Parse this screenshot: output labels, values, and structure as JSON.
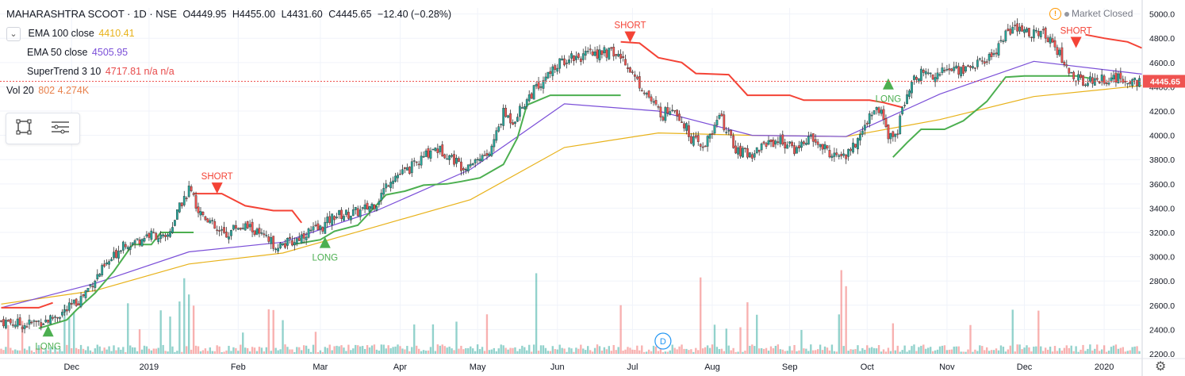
{
  "header": {
    "symbol": "MAHARASHTRA SCOOT · 1D · NSE",
    "open": "O4449.95",
    "high": "H4455.00",
    "low": "L4431.60",
    "close": "C4445.65",
    "change": "−12.40 (−0.28%)"
  },
  "indicators": [
    {
      "label": "EMA 100 close",
      "value": "4410.41",
      "color": "#e8b21a"
    },
    {
      "label": "EMA 50 close",
      "value": "4505.95",
      "color": "#7b4fd8"
    },
    {
      "label": "SuperTrend 3 10",
      "value": "4717.81 n/a n/a",
      "color": "#e84b4b"
    },
    {
      "label": "Vol 20",
      "value": "802 4.274K",
      "color": "#e8804b"
    }
  ],
  "market_status": "Market Closed",
  "chart_data": {
    "type": "candlestick",
    "y_axis_ticks": [
      2200,
      2400,
      2600,
      2800,
      3000,
      3200,
      3400,
      3600,
      3800,
      4000,
      4200,
      4400,
      4600,
      4800,
      5000
    ],
    "ylim": [
      2200,
      5050
    ],
    "x_axis_labels": [
      "Dec",
      "2019",
      "Feb",
      "Mar",
      "Apr",
      "May",
      "Jun",
      "Jul",
      "Aug",
      "Sep",
      "Oct",
      "Nov",
      "Dec",
      "2020"
    ],
    "last_price": "4445.65",
    "close_path": [
      [
        0,
        2470
      ],
      [
        10,
        2440
      ],
      [
        20,
        2480
      ],
      [
        28,
        2560
      ],
      [
        34,
        2660
      ],
      [
        40,
        2820
      ],
      [
        48,
        3000
      ],
      [
        52,
        3120
      ],
      [
        56,
        3110
      ],
      [
        62,
        3180
      ],
      [
        66,
        3180
      ],
      [
        70,
        3130
      ],
      [
        76,
        3400
      ],
      [
        80,
        3560
      ],
      [
        84,
        3380
      ],
      [
        88,
        3320
      ],
      [
        92,
        3200
      ],
      [
        96,
        3180
      ],
      [
        100,
        3250
      ],
      [
        106,
        3240
      ],
      [
        112,
        3150
      ],
      [
        118,
        3090
      ],
      [
        124,
        3120
      ],
      [
        130,
        3200
      ],
      [
        136,
        3230
      ],
      [
        142,
        3340
      ],
      [
        148,
        3350
      ],
      [
        154,
        3380
      ],
      [
        160,
        3450
      ],
      [
        166,
        3650
      ],
      [
        172,
        3700
      ],
      [
        178,
        3780
      ],
      [
        184,
        3900
      ],
      [
        190,
        3850
      ],
      [
        196,
        3750
      ],
      [
        202,
        3800
      ],
      [
        208,
        3850
      ],
      [
        214,
        4180
      ],
      [
        218,
        4120
      ],
      [
        224,
        4300
      ],
      [
        230,
        4440
      ],
      [
        236,
        4560
      ],
      [
        242,
        4650
      ],
      [
        248,
        4650
      ],
      [
        254,
        4680
      ],
      [
        260,
        4680
      ],
      [
        266,
        4620
      ],
      [
        270,
        4470
      ],
      [
        274,
        4380
      ],
      [
        278,
        4250
      ],
      [
        282,
        4170
      ],
      [
        286,
        4250
      ],
      [
        290,
        4130
      ],
      [
        294,
        3980
      ],
      [
        298,
        3900
      ],
      [
        302,
        3980
      ],
      [
        306,
        4160
      ],
      [
        310,
        4000
      ],
      [
        314,
        3860
      ],
      [
        320,
        3850
      ],
      [
        326,
        3940
      ],
      [
        332,
        3960
      ],
      [
        338,
        3880
      ],
      [
        344,
        3980
      ],
      [
        350,
        3900
      ],
      [
        356,
        3820
      ],
      [
        362,
        3860
      ],
      [
        366,
        4000
      ],
      [
        370,
        4170
      ],
      [
        374,
        4230
      ],
      [
        378,
        4000
      ],
      [
        382,
        4030
      ],
      [
        386,
        4380
      ],
      [
        392,
        4520
      ],
      [
        398,
        4500
      ],
      [
        404,
        4550
      ],
      [
        410,
        4540
      ],
      [
        416,
        4590
      ],
      [
        422,
        4650
      ],
      [
        428,
        4840
      ],
      [
        432,
        4880
      ],
      [
        436,
        4850
      ],
      [
        442,
        4840
      ],
      [
        448,
        4800
      ],
      [
        452,
        4620
      ],
      [
        456,
        4500
      ],
      [
        460,
        4450
      ],
      [
        466,
        4460
      ],
      [
        472,
        4470
      ],
      [
        478,
        4460
      ],
      [
        486,
        4445
      ]
    ],
    "supertrend_path": [
      {
        "side": "short",
        "points": [
          [
            0,
            2580
          ],
          [
            16,
            2580
          ],
          [
            22,
            2620
          ]
        ]
      },
      {
        "side": "long",
        "points": [
          [
            16,
            2410
          ],
          [
            28,
            2480
          ],
          [
            32,
            2560
          ],
          [
            40,
            2700
          ],
          [
            48,
            2880
          ],
          [
            56,
            3100
          ],
          [
            64,
            3100
          ],
          [
            68,
            3200
          ],
          [
            82,
            3200
          ]
        ]
      },
      {
        "side": "short",
        "points": [
          [
            82,
            3520
          ],
          [
            94,
            3520
          ],
          [
            104,
            3420
          ],
          [
            116,
            3380
          ],
          [
            124,
            3380
          ],
          [
            128,
            3280
          ]
        ]
      },
      {
        "side": "long",
        "points": [
          [
            124,
            3100
          ],
          [
            136,
            3140
          ],
          [
            142,
            3210
          ],
          [
            152,
            3260
          ],
          [
            164,
            3510
          ],
          [
            172,
            3540
          ],
          [
            180,
            3590
          ],
          [
            190,
            3600
          ],
          [
            196,
            3620
          ],
          [
            204,
            3650
          ],
          [
            214,
            3760
          ],
          [
            220,
            3980
          ],
          [
            224,
            4250
          ],
          [
            234,
            4330
          ],
          [
            256,
            4330
          ],
          [
            264,
            4330
          ]
        ]
      },
      {
        "side": "short",
        "points": [
          [
            264,
            4770
          ],
          [
            272,
            4760
          ],
          [
            280,
            4640
          ],
          [
            290,
            4600
          ],
          [
            296,
            4510
          ],
          [
            310,
            4500
          ],
          [
            318,
            4330
          ],
          [
            336,
            4330
          ],
          [
            342,
            4290
          ],
          [
            370,
            4290
          ],
          [
            376,
            4270
          ],
          [
            384,
            4230
          ]
        ]
      },
      {
        "side": "long",
        "points": [
          [
            380,
            3820
          ],
          [
            386,
            3940
          ],
          [
            392,
            4050
          ],
          [
            402,
            4050
          ],
          [
            410,
            4120
          ],
          [
            420,
            4280
          ],
          [
            428,
            4480
          ],
          [
            436,
            4490
          ],
          [
            458,
            4490
          ],
          [
            464,
            4470
          ]
        ]
      },
      {
        "side": "short",
        "points": [
          [
            462,
            4830
          ],
          [
            470,
            4800
          ],
          [
            480,
            4770
          ],
          [
            486,
            4720
          ]
        ]
      }
    ],
    "ema100_path": [
      [
        0,
        2610
      ],
      [
        40,
        2720
      ],
      [
        80,
        2940
      ],
      [
        120,
        3030
      ],
      [
        160,
        3250
      ],
      [
        200,
        3470
      ],
      [
        240,
        3900
      ],
      [
        280,
        4020
      ],
      [
        320,
        4000
      ],
      [
        360,
        3990
      ],
      [
        400,
        4130
      ],
      [
        440,
        4320
      ],
      [
        486,
        4410
      ]
    ],
    "ema50_path": [
      [
        0,
        2580
      ],
      [
        40,
        2780
      ],
      [
        80,
        3040
      ],
      [
        120,
        3120
      ],
      [
        160,
        3380
      ],
      [
        200,
        3720
      ],
      [
        240,
        4260
      ],
      [
        280,
        4200
      ],
      [
        320,
        4000
      ],
      [
        360,
        3990
      ],
      [
        400,
        4340
      ],
      [
        440,
        4610
      ],
      [
        486,
        4505
      ]
    ],
    "signals": [
      {
        "type": "LONG",
        "index": 20
      },
      {
        "type": "SHORT",
        "index": 92
      },
      {
        "type": "LONG",
        "index": 138
      },
      {
        "type": "SHORT",
        "index": 268
      },
      {
        "type": "LONG",
        "index": 378
      },
      {
        "type": "SHORT",
        "index": 458
      }
    ],
    "volume_note": "D"
  }
}
